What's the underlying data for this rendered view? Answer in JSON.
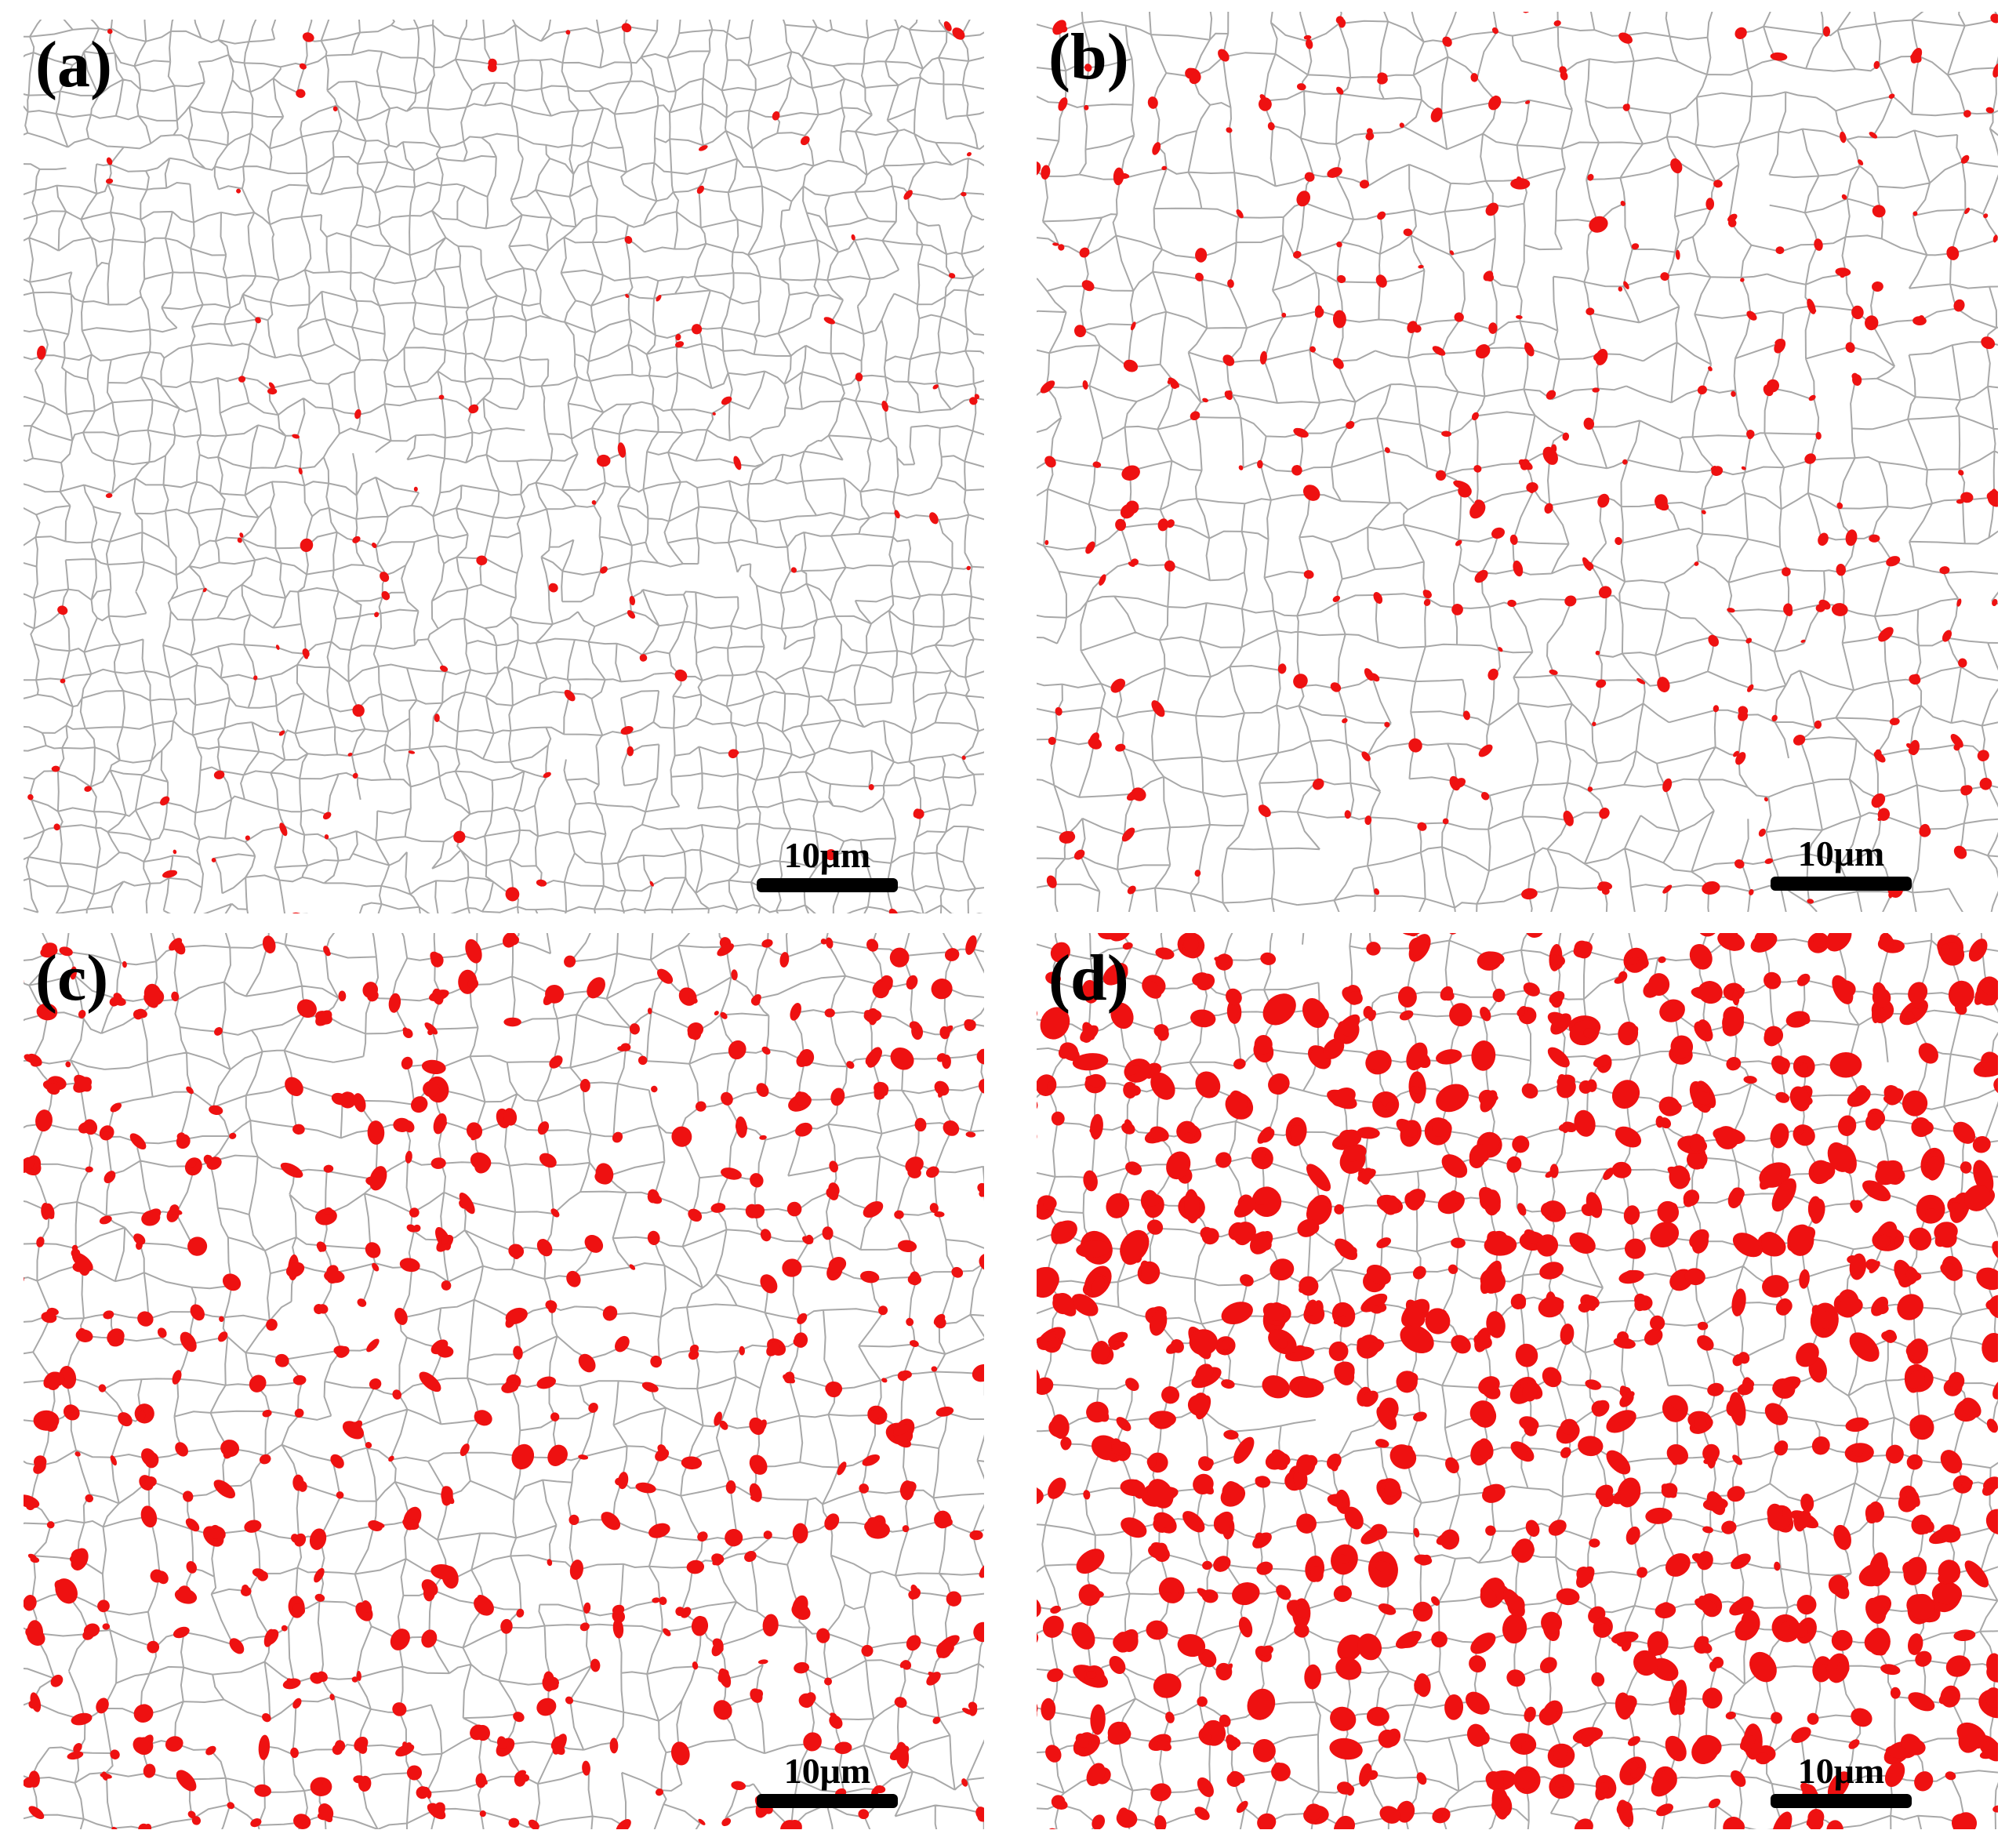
{
  "panels": [
    {
      "label": "(a)",
      "scale_bar": "10μm"
    },
    {
      "label": "(b)",
      "scale_bar": "10μm"
    },
    {
      "label": "(c)",
      "scale_bar": "10μm"
    },
    {
      "label": "(d)",
      "scale_bar": "10μm"
    }
  ]
}
